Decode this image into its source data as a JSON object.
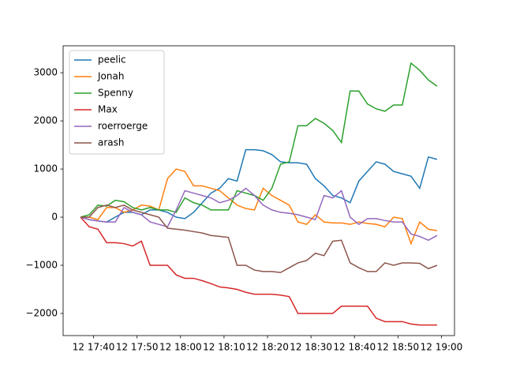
{
  "chart_data": {
    "type": "line",
    "x": [
      "12 17:37",
      "12 17:39",
      "12 17:41",
      "12 17:43",
      "12 17:45",
      "12 17:47",
      "12 17:49",
      "12 17:51",
      "12 17:53",
      "12 17:55",
      "12 17:57",
      "12 17:59",
      "12 18:01",
      "12 18:03",
      "12 18:05",
      "12 18:07",
      "12 18:09",
      "12 18:11",
      "12 18:13",
      "12 18:15",
      "12 18:17",
      "12 18:19",
      "12 18:21",
      "12 18:23",
      "12 18:25",
      "12 18:27",
      "12 18:29",
      "12 18:31",
      "12 18:33",
      "12 18:35",
      "12 18:37",
      "12 18:39",
      "12 18:41",
      "12 18:43",
      "12 18:45",
      "12 18:47",
      "12 18:49",
      "12 18:51",
      "12 18:53",
      "12 18:55",
      "12 18:57",
      "12 18:59"
    ],
    "series": [
      {
        "name": "peelic",
        "color": "#1f77b4",
        "values": [
          0,
          -50,
          -80,
          -100,
          0,
          100,
          100,
          50,
          150,
          150,
          100,
          0,
          -30,
          100,
          300,
          500,
          600,
          800,
          750,
          1400,
          1400,
          1380,
          1300,
          1150,
          1130,
          1130,
          1100,
          800,
          650,
          450,
          400,
          300,
          750,
          950,
          1150,
          1100,
          950,
          900,
          850,
          600,
          1250,
          1200
        ]
      },
      {
        "name": "Jonah",
        "color": "#ff7f0e",
        "values": [
          0,
          0,
          -50,
          200,
          200,
          100,
          150,
          250,
          230,
          150,
          800,
          1000,
          950,
          650,
          650,
          600,
          550,
          400,
          250,
          180,
          150,
          600,
          450,
          350,
          250,
          -100,
          -150,
          50,
          -100,
          -120,
          -120,
          -150,
          -100,
          -130,
          -150,
          -200,
          0,
          -30,
          -550,
          -100,
          -250,
          -280
        ]
      },
      {
        "name": "Spenny",
        "color": "#2ca02c",
        "values": [
          0,
          50,
          250,
          230,
          350,
          320,
          200,
          150,
          200,
          150,
          150,
          100,
          400,
          300,
          250,
          150,
          150,
          150,
          550,
          500,
          450,
          350,
          600,
          1100,
          1150,
          1900,
          1900,
          2050,
          1950,
          1800,
          1550,
          2620,
          2620,
          2350,
          2250,
          2200,
          2330,
          2330,
          3200,
          3050,
          2850,
          2720
        ]
      },
      {
        "name": "Max",
        "color": "#d62728",
        "values": [
          0,
          -200,
          -250,
          -530,
          -530,
          -550,
          -600,
          -500,
          -1000,
          -1000,
          -1000,
          -1200,
          -1270,
          -1270,
          -1320,
          -1380,
          -1450,
          -1470,
          -1500,
          -1560,
          -1600,
          -1600,
          -1600,
          -1620,
          -1650,
          -2000,
          -2000,
          -2000,
          -2000,
          -2000,
          -1850,
          -1850,
          -1850,
          -1850,
          -2100,
          -2170,
          -2170,
          -2170,
          -2220,
          -2240,
          -2240,
          -2240
        ]
      },
      {
        "name": "roerroerge",
        "color": "#9467bd",
        "values": [
          0,
          -50,
          -80,
          -100,
          -100,
          200,
          100,
          50,
          -100,
          -150,
          -200,
          150,
          550,
          500,
          450,
          400,
          300,
          350,
          450,
          600,
          450,
          250,
          150,
          100,
          80,
          50,
          0,
          -50,
          450,
          400,
          550,
          0,
          -150,
          -30,
          -30,
          -70,
          -100,
          -100,
          -350,
          -400,
          -480,
          -380
        ]
      },
      {
        "name": "arash",
        "color": "#8c564b",
        "values": [
          0,
          0,
          200,
          250,
          200,
          250,
          150,
          100,
          50,
          0,
          -230,
          -250,
          -270,
          -300,
          -330,
          -380,
          -400,
          -420,
          -1000,
          -1000,
          -1100,
          -1130,
          -1130,
          -1150,
          -1050,
          -950,
          -900,
          -750,
          -800,
          -500,
          -480,
          -950,
          -1050,
          -1130,
          -1130,
          -950,
          -1000,
          -950,
          -950,
          -960,
          -1070,
          -1000
        ]
      }
    ],
    "xlim": [
      "12 17:33",
      "12 19:03"
    ],
    "xticks": [
      "12 17:40",
      "12 17:50",
      "12 18:00",
      "12 18:10",
      "12 18:20",
      "12 18:30",
      "12 18:40",
      "12 18:50",
      "12 19:00"
    ],
    "ylim": [
      -2460,
      3560
    ],
    "yticks": [
      {
        "value": -2000,
        "label": "−2000"
      },
      {
        "value": -1000,
        "label": "−1000"
      },
      0,
      1000,
      2000,
      3000
    ],
    "legend": "upper left"
  }
}
